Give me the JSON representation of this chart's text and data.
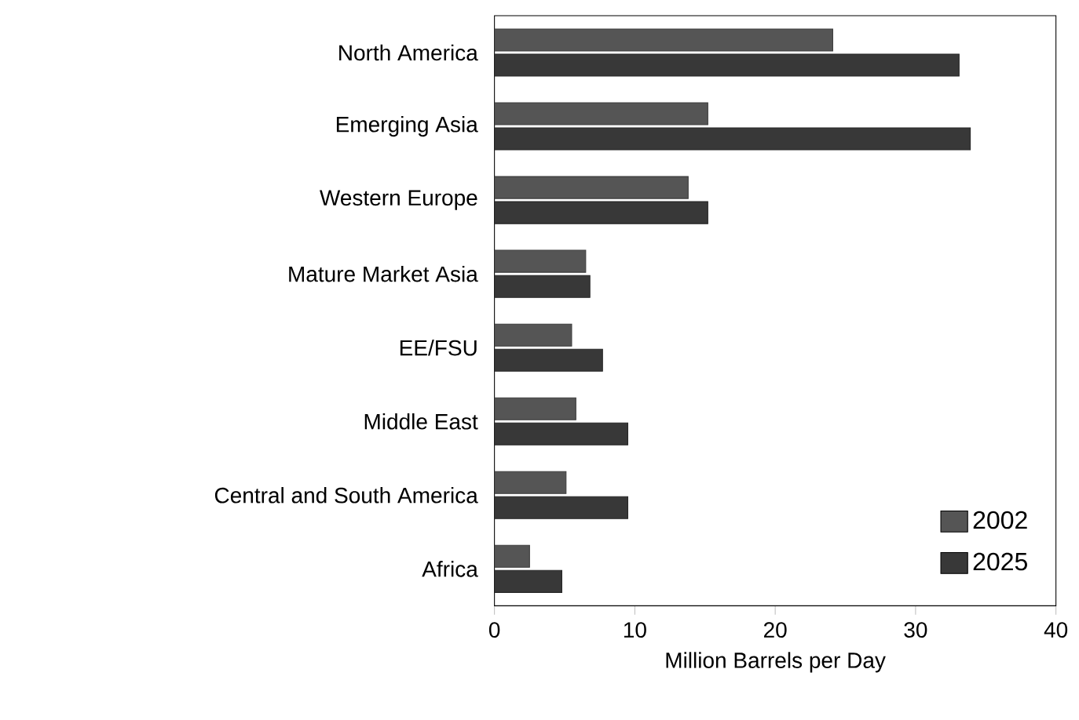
{
  "chart_data": {
    "type": "bar",
    "orientation": "horizontal",
    "xlabel": "Million Barrels per Day",
    "categories": [
      "North America",
      "Emerging Asia",
      "Western Europe",
      "Mature Market Asia",
      "EE/FSU",
      "Middle East",
      "Central and South America",
      "Africa"
    ],
    "series": [
      {
        "name": "2002",
        "color": "#555555",
        "values": [
          24.1,
          15.2,
          13.8,
          6.5,
          5.5,
          5.8,
          5.1,
          2.5
        ]
      },
      {
        "name": "2025",
        "color": "#383838",
        "values": [
          33.1,
          33.9,
          15.2,
          6.8,
          7.7,
          9.5,
          9.5,
          4.8
        ]
      }
    ],
    "xlim": [
      0,
      40
    ],
    "xticks": [
      0,
      10,
      20,
      30,
      40
    ],
    "grid": false,
    "legend": "bottom right"
  }
}
